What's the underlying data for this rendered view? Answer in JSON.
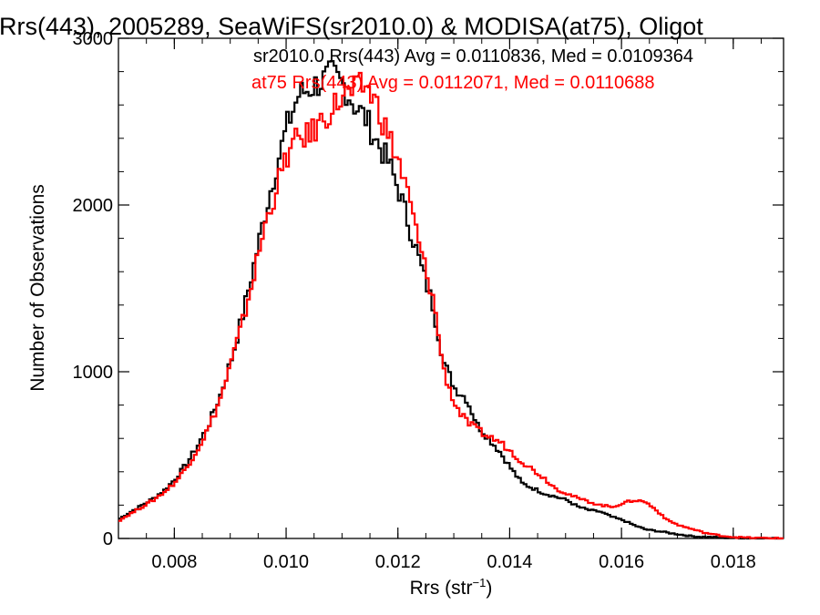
{
  "chart_data": {
    "type": "line",
    "style": "step-histogram",
    "title": "Rrs(443), 2005289, SeaWiFS(sr2010.0) & MODISA(at75), Oligot",
    "xlabel": "Rrs (str",
    "xlabel_sup": "−1",
    "xlabel_close": ")",
    "ylabel": "Number of Observations",
    "xlim": [
      0.007,
      0.0189
    ],
    "ylim": [
      0,
      3000
    ],
    "xticks": [
      0.008,
      0.01,
      0.012,
      0.014,
      0.016,
      0.018
    ],
    "xtick_labels": [
      "0.008",
      "0.010",
      "0.012",
      "0.014",
      "0.016",
      "0.018"
    ],
    "yticks": [
      0,
      1000,
      2000,
      3000
    ],
    "ytick_labels": [
      "0",
      "1000",
      "2000",
      "3000"
    ],
    "grid": false,
    "legend_position": "top-right",
    "series": [
      {
        "name": "sr2010.0 Rrs(443) Avg = 0.0110836, Med = 0.0109364",
        "color": "#000000",
        "points": [
          [
            0.007,
            120
          ],
          [
            0.0072,
            160
          ],
          [
            0.0074,
            200
          ],
          [
            0.0076,
            240
          ],
          [
            0.0078,
            290
          ],
          [
            0.008,
            360
          ],
          [
            0.0082,
            450
          ],
          [
            0.0084,
            560
          ],
          [
            0.0086,
            690
          ],
          [
            0.0088,
            860
          ],
          [
            0.009,
            1080
          ],
          [
            0.0092,
            1340
          ],
          [
            0.0094,
            1640
          ],
          [
            0.0096,
            1950
          ],
          [
            0.0098,
            2230
          ],
          [
            0.01,
            2480
          ],
          [
            0.0102,
            2660
          ],
          [
            0.0104,
            2700
          ],
          [
            0.0106,
            2740
          ],
          [
            0.0108,
            2780
          ],
          [
            0.011,
            2720
          ],
          [
            0.0112,
            2600
          ],
          [
            0.0114,
            2520
          ],
          [
            0.0116,
            2380
          ],
          [
            0.0118,
            2260
          ],
          [
            0.012,
            2080
          ],
          [
            0.0122,
            1850
          ],
          [
            0.0124,
            1620
          ],
          [
            0.0126,
            1400
          ],
          [
            0.0128,
            1050
          ],
          [
            0.013,
            900
          ],
          [
            0.0132,
            840
          ],
          [
            0.0134,
            680
          ],
          [
            0.0136,
            600
          ],
          [
            0.0138,
            520
          ],
          [
            0.014,
            420
          ],
          [
            0.0142,
            330
          ],
          [
            0.0144,
            300
          ],
          [
            0.0146,
            270
          ],
          [
            0.0148,
            250
          ],
          [
            0.015,
            230
          ],
          [
            0.0152,
            190
          ],
          [
            0.0154,
            170
          ],
          [
            0.0156,
            160
          ],
          [
            0.0158,
            130
          ],
          [
            0.016,
            110
          ],
          [
            0.0162,
            80
          ],
          [
            0.0164,
            55
          ],
          [
            0.0166,
            45
          ],
          [
            0.0168,
            35
          ],
          [
            0.017,
            25
          ],
          [
            0.0172,
            15
          ],
          [
            0.0174,
            10
          ],
          [
            0.0176,
            8
          ],
          [
            0.0178,
            5
          ],
          [
            0.018,
            3
          ],
          [
            0.0182,
            2
          ],
          [
            0.0184,
            1
          ],
          [
            0.0186,
            1
          ],
          [
            0.0188,
            0
          ]
        ]
      },
      {
        "name": "at75 Rrs(443) Avg = 0.0112071, Med = 0.0110688",
        "color": "#ff0000",
        "points": [
          [
            0.007,
            110
          ],
          [
            0.0072,
            150
          ],
          [
            0.0074,
            190
          ],
          [
            0.0076,
            230
          ],
          [
            0.0078,
            280
          ],
          [
            0.008,
            340
          ],
          [
            0.0082,
            430
          ],
          [
            0.0084,
            540
          ],
          [
            0.0086,
            670
          ],
          [
            0.0088,
            840
          ],
          [
            0.009,
            1060
          ],
          [
            0.0092,
            1300
          ],
          [
            0.0094,
            1580
          ],
          [
            0.0096,
            1880
          ],
          [
            0.0098,
            2100
          ],
          [
            0.01,
            2300
          ],
          [
            0.0102,
            2400
          ],
          [
            0.0104,
            2420
          ],
          [
            0.0106,
            2500
          ],
          [
            0.0108,
            2580
          ],
          [
            0.011,
            2650
          ],
          [
            0.0112,
            2680
          ],
          [
            0.0114,
            2720
          ],
          [
            0.0116,
            2600
          ],
          [
            0.0118,
            2420
          ],
          [
            0.012,
            2250
          ],
          [
            0.0122,
            2000
          ],
          [
            0.0124,
            1700
          ],
          [
            0.0126,
            1450
          ],
          [
            0.0128,
            1000
          ],
          [
            0.013,
            800
          ],
          [
            0.0132,
            700
          ],
          [
            0.0134,
            650
          ],
          [
            0.0136,
            610
          ],
          [
            0.0138,
            580
          ],
          [
            0.014,
            520
          ],
          [
            0.0142,
            460
          ],
          [
            0.0144,
            410
          ],
          [
            0.0146,
            360
          ],
          [
            0.0148,
            300
          ],
          [
            0.015,
            270
          ],
          [
            0.0152,
            240
          ],
          [
            0.0154,
            220
          ],
          [
            0.0156,
            200
          ],
          [
            0.0158,
            190
          ],
          [
            0.016,
            210
          ],
          [
            0.0162,
            230
          ],
          [
            0.0164,
            220
          ],
          [
            0.0166,
            170
          ],
          [
            0.0168,
            110
          ],
          [
            0.017,
            80
          ],
          [
            0.0172,
            60
          ],
          [
            0.0174,
            40
          ],
          [
            0.0176,
            25
          ],
          [
            0.0178,
            15
          ],
          [
            0.018,
            8
          ],
          [
            0.0182,
            5
          ],
          [
            0.0184,
            3
          ],
          [
            0.0186,
            2
          ],
          [
            0.0188,
            1
          ]
        ]
      }
    ]
  }
}
